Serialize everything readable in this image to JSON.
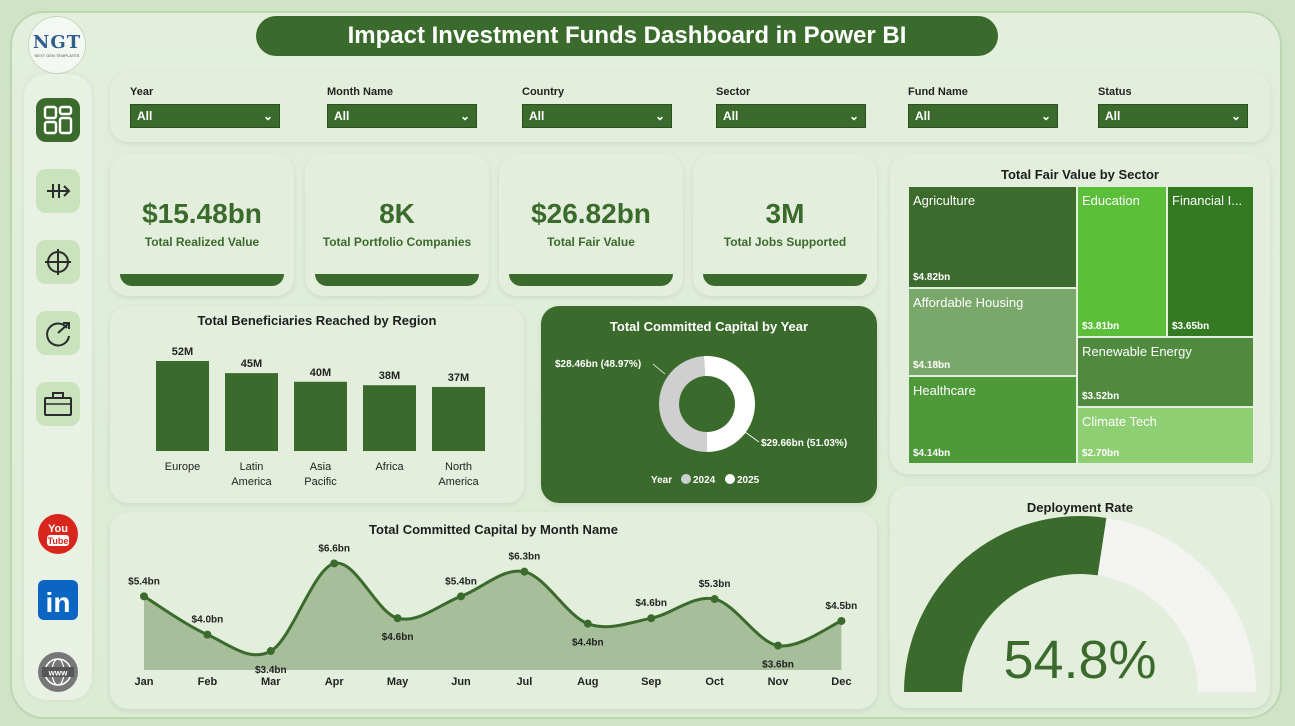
{
  "header": {
    "title": "Impact Investment Funds Dashboard in Power BI",
    "logo_text": "NGT",
    "logo_sub": "NEXT GEN TEMPLATES"
  },
  "sidebar": {
    "items": [
      {
        "icon": "dashboard-icon",
        "active": true
      },
      {
        "icon": "transfer-arrows-icon"
      },
      {
        "icon": "crosshair-icon"
      },
      {
        "icon": "refresh-arrow-icon"
      },
      {
        "icon": "briefcase-icon"
      }
    ],
    "social": [
      {
        "icon": "youtube-icon",
        "label": "You Tube"
      },
      {
        "icon": "linkedin-icon",
        "label": "in"
      },
      {
        "icon": "globe-www-icon",
        "label": "www"
      }
    ]
  },
  "filters": [
    {
      "label": "Year",
      "value": "All"
    },
    {
      "label": "Month Name",
      "value": "All"
    },
    {
      "label": "Country",
      "value": "All"
    },
    {
      "label": "Sector",
      "value": "All"
    },
    {
      "label": "Fund Name",
      "value": "All"
    },
    {
      "label": "Status",
      "value": "All"
    }
  ],
  "kpis": [
    {
      "value": "$15.48bn",
      "label": "Total Realized Value"
    },
    {
      "value": "8K",
      "label": "Total Portfolio Companies"
    },
    {
      "value": "$26.82bn",
      "label": "Total Fair Value"
    },
    {
      "value": "3M",
      "label": "Total Jobs Supported"
    }
  ],
  "colors": {
    "primary": "#3b6b2c",
    "card": "#e3efdc",
    "bg": "#cfe3c6"
  },
  "chart_data": [
    {
      "type": "bar",
      "title": "Total Beneficiaries Reached by Region",
      "categories": [
        "Europe",
        "Latin America",
        "Asia Pacific",
        "Africa",
        "North America"
      ],
      "values": [
        52,
        45,
        40,
        38,
        37
      ],
      "data_labels": [
        "52M",
        "45M",
        "40M",
        "38M",
        "37M"
      ],
      "unit": "M"
    },
    {
      "type": "pie",
      "title": "Total Committed Capital by Year",
      "legend_title": "Year",
      "categories": [
        "2024",
        "2025"
      ],
      "values": [
        28.46,
        29.66
      ],
      "data_labels": [
        "$28.46bn (48.97%)",
        "$29.66bn (51.03%)"
      ]
    },
    {
      "type": "area",
      "title": "Total Committed Capital by Month Name",
      "categories": [
        "Jan",
        "Feb",
        "Mar",
        "Apr",
        "May",
        "Jun",
        "Jul",
        "Aug",
        "Sep",
        "Oct",
        "Nov",
        "Dec"
      ],
      "values": [
        5.4,
        4.0,
        3.4,
        6.6,
        4.6,
        5.4,
        6.3,
        4.4,
        4.6,
        5.3,
        3.6,
        4.5
      ],
      "data_labels": [
        "$5.4bn",
        "$4.0bn",
        "$3.4bn",
        "$6.6bn",
        "$4.6bn",
        "$5.4bn",
        "$6.3bn",
        "$4.4bn",
        "$4.6bn",
        "$5.3bn",
        "$3.6bn",
        "$4.5bn"
      ]
    },
    {
      "type": "treemap",
      "title": "Total Fair Value by Sector",
      "items": [
        {
          "name": "Agriculture",
          "value": 4.82,
          "label": "$4.82bn",
          "color": "#3d6b2e"
        },
        {
          "name": "Education",
          "value": 3.81,
          "label": "$3.81bn",
          "color": "#5bbf3a"
        },
        {
          "name": "Financial I...",
          "value": 3.65,
          "label": "$3.65bn",
          "color": "#347a22"
        },
        {
          "name": "Affordable Housing",
          "value": 4.18,
          "label": "$4.18bn",
          "color": "#7aa86a"
        },
        {
          "name": "Renewable Energy",
          "value": 3.52,
          "label": "$3.52bn",
          "color": "#4f8a3e"
        },
        {
          "name": "Healthcare",
          "value": 4.14,
          "label": "$4.14bn",
          "color": "#4e9a3b"
        },
        {
          "name": "Climate Tech",
          "value": 2.7,
          "label": "$2.70bn",
          "color": "#8fcf73"
        }
      ]
    },
    {
      "type": "gauge",
      "title": "Deployment Rate",
      "value": 54.8,
      "display": "54.8%"
    }
  ]
}
